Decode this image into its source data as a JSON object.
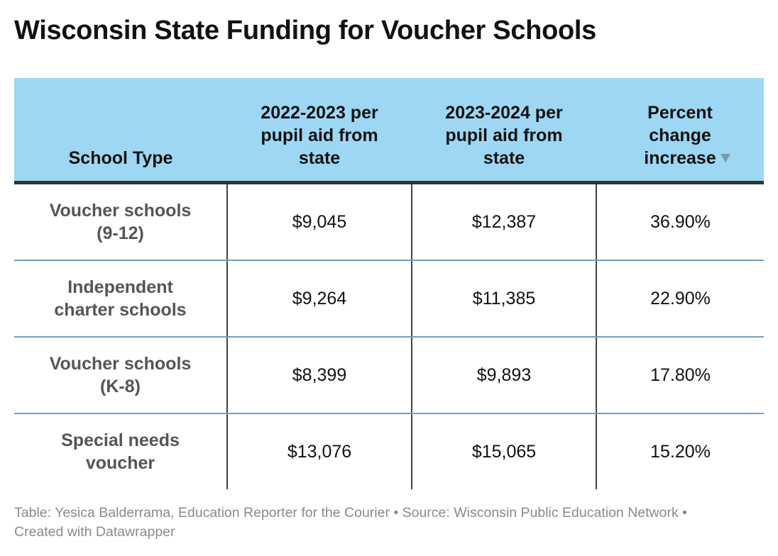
{
  "title": "Wisconsin State Funding for Voucher Schools",
  "table": {
    "header": [
      "School Type",
      "2022-2023 per pupil aid from state",
      "2023-2024 per pupil aid from state",
      "Percent change increase"
    ],
    "rows": [
      [
        "Voucher schools (9-12)",
        "$9,045",
        "$12,387",
        "36.90%"
      ],
      [
        "Independent charter schools",
        "$9,264",
        "$11,385",
        "22.90%"
      ],
      [
        "Voucher schools (K-8)",
        "$8,399",
        "$9,893",
        "17.80%"
      ],
      [
        "Special needs voucher",
        "$13,076",
        "$15,065",
        "15.20%"
      ]
    ]
  },
  "footer": "Table: Yesica Balderrama, Education Reporter for the Courier • Source: Wisconsin Public Education Network • Created with Datawrapper"
}
